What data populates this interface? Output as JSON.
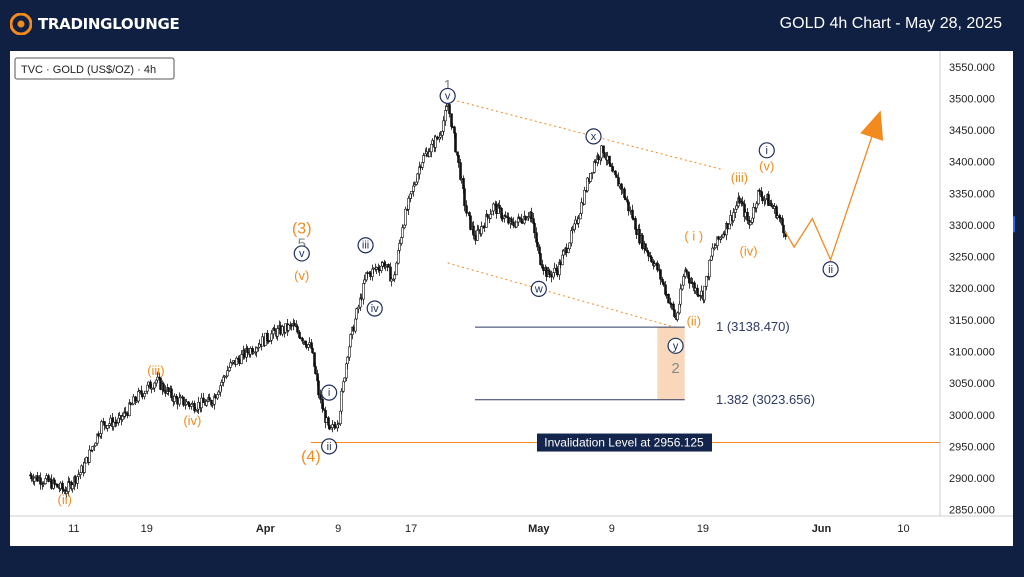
{
  "header": {
    "brand": "TRADINGLOUNGE",
    "title": "GOLD 4h Chart - May 28, 2025"
  },
  "colors": {
    "orange": "#f28a1e",
    "navy": "#1e2e5c",
    "gray": "#888888",
    "zone": "#f6c9a4",
    "background": "#0f2043"
  },
  "chart_data": {
    "type": "candlestick",
    "symbol_label": "TVC · GOLD (US$/OZ) · 4h",
    "ylim": [
      2840,
      3575
    ],
    "y_ticks": [
      "3550.000",
      "3500.000",
      "3450.000",
      "3400.000",
      "3350.000",
      "3300.000",
      "3250.000",
      "3200.000",
      "3150.000",
      "3100.000",
      "3050.000",
      "3000.000",
      "2950.000",
      "2900.000",
      "2850.000"
    ],
    "y_tick_values": [
      3550,
      3500,
      3450,
      3400,
      3350,
      3300,
      3250,
      3200,
      3150,
      3100,
      3050,
      3000,
      2950,
      2900,
      2850
    ],
    "x_ticks": [
      "11",
      "19",
      "Apr",
      "9",
      "17",
      "May",
      "9",
      "19",
      "Jun",
      "10"
    ],
    "x_tick_dates": [
      "2025-03-11",
      "2025-03-19",
      "2025-04-01",
      "2025-04-09",
      "2025-04-17",
      "2025-05-01",
      "2025-05-09",
      "2025-05-19",
      "2025-06-01",
      "2025-06-10"
    ],
    "x_tick_bold": [
      false,
      false,
      true,
      false,
      false,
      true,
      false,
      false,
      true,
      false
    ],
    "price_path": [
      [
        "2025-03-06",
        2905
      ],
      [
        "2025-03-08",
        2895
      ],
      [
        "2025-03-10",
        2880
      ],
      [
        "2025-03-12",
        2915
      ],
      [
        "2025-03-14",
        2985
      ],
      [
        "2025-03-16",
        2990
      ],
      [
        "2025-03-18",
        3030
      ],
      [
        "2025-03-20",
        3055
      ],
      [
        "2025-03-22",
        3025
      ],
      [
        "2025-03-24",
        3015
      ],
      [
        "2025-03-26",
        3020
      ],
      [
        "2025-03-28",
        3075
      ],
      [
        "2025-03-30",
        3100
      ],
      [
        "2025-04-02",
        3130
      ],
      [
        "2025-04-04",
        3140
      ],
      [
        "2025-04-06",
        3105
      ],
      [
        "2025-04-07",
        3020
      ],
      [
        "2025-04-08",
        2970
      ],
      [
        "2025-04-09",
        2995
      ],
      [
        "2025-04-10",
        3100
      ],
      [
        "2025-04-12",
        3220
      ],
      [
        "2025-04-14",
        3240
      ],
      [
        "2025-04-15",
        3210
      ],
      [
        "2025-04-16",
        3300
      ],
      [
        "2025-04-18",
        3400
      ],
      [
        "2025-04-20",
        3440
      ],
      [
        "2025-04-21",
        3490
      ],
      [
        "2025-04-22",
        3410
      ],
      [
        "2025-04-23",
        3320
      ],
      [
        "2025-04-24",
        3280
      ],
      [
        "2025-04-26",
        3330
      ],
      [
        "2025-04-28",
        3300
      ],
      [
        "2025-04-30",
        3320
      ],
      [
        "2025-05-01",
        3250
      ],
      [
        "2025-05-02",
        3220
      ],
      [
        "2025-05-03",
        3230
      ],
      [
        "2025-05-05",
        3300
      ],
      [
        "2025-05-07",
        3400
      ],
      [
        "2025-05-08",
        3420
      ],
      [
        "2025-05-09",
        3380
      ],
      [
        "2025-05-10",
        3360
      ],
      [
        "2025-05-12",
        3280
      ],
      [
        "2025-05-14",
        3230
      ],
      [
        "2025-05-15",
        3190
      ],
      [
        "2025-05-16",
        3150
      ],
      [
        "2025-05-17",
        3230
      ],
      [
        "2025-05-18",
        3200
      ],
      [
        "2025-05-19",
        3190
      ],
      [
        "2025-05-20",
        3260
      ],
      [
        "2025-05-22",
        3310
      ],
      [
        "2025-05-23",
        3340
      ],
      [
        "2025-05-24",
        3300
      ],
      [
        "2025-05-25",
        3350
      ],
      [
        "2025-05-26",
        3340
      ],
      [
        "2025-05-27",
        3320
      ],
      [
        "2025-05-28",
        3290
      ]
    ],
    "channel_lines": [
      {
        "from": [
          "2025-04-21",
          3500
        ],
        "to": [
          "2025-05-21",
          3388
        ]
      },
      {
        "from": [
          "2025-04-21",
          3240
        ],
        "to": [
          "2025-05-16",
          3138
        ]
      }
    ],
    "projection": [
      [
        "2025-05-28",
        3290
      ],
      [
        "2025-05-29",
        3265
      ],
      [
        "2025-05-31",
        3310
      ],
      [
        "2025-06-02",
        3245
      ],
      [
        "2025-06-07",
        3460
      ]
    ],
    "fib_levels": [
      {
        "label": "1 (3138.470)",
        "value": 3138.47
      },
      {
        "label": "1.382 (3023.656)",
        "value": 3023.656
      }
    ],
    "target_zone": {
      "from_date": "2025-05-14",
      "to_date": "2025-05-17",
      "high": 3138.47,
      "low": 3023.656
    },
    "invalidation": {
      "label": "Invalidation Level at 2956.125",
      "value": 2956.125
    },
    "wave_labels": [
      {
        "text": "1",
        "style": "gray",
        "date": "2025-04-21",
        "price": 3522
      },
      {
        "text": "v",
        "style": "navy-circle",
        "date": "2025-04-21",
        "price": 3504
      },
      {
        "text": "x",
        "style": "navy-circle",
        "date": "2025-05-07",
        "price": 3440
      },
      {
        "text": "w",
        "style": "navy-circle",
        "date": "2025-05-01",
        "price": 3199
      },
      {
        "text": "y",
        "style": "navy-circle",
        "date": "2025-05-16",
        "price": 3109
      },
      {
        "text": "2",
        "style": "gray",
        "date": "2025-05-16",
        "price": 3074
      },
      {
        "text": "i",
        "style": "navy-circle",
        "date": "2025-05-26",
        "price": 3418
      },
      {
        "text": "ii",
        "style": "navy-circle",
        "date": "2025-06-02",
        "price": 3230
      },
      {
        "text": "(v)",
        "style": "orange",
        "date": "2025-05-26",
        "price": 3393
      },
      {
        "text": "(iii)",
        "style": "orange",
        "date": "2025-05-23",
        "price": 3375
      },
      {
        "text": "(iv)",
        "style": "orange",
        "date": "2025-05-24",
        "price": 3259
      },
      {
        "text": "( i )",
        "style": "orange",
        "date": "2025-05-18",
        "price": 3283
      },
      {
        "text": "(ii)",
        "style": "orange",
        "date": "2025-05-18",
        "price": 3148
      },
      {
        "text": "(3)",
        "style": "orange-large",
        "date": "2025-04-05",
        "price": 3295
      },
      {
        "text": "5",
        "style": "gray",
        "date": "2025-04-05",
        "price": 3271
      },
      {
        "text": "v",
        "style": "navy-circle",
        "date": "2025-04-05",
        "price": 3255
      },
      {
        "text": "(v)",
        "style": "orange",
        "date": "2025-04-05",
        "price": 3220
      },
      {
        "text": "iii",
        "style": "navy-circle",
        "date": "2025-04-12",
        "price": 3268
      },
      {
        "text": "iv",
        "style": "navy-circle",
        "date": "2025-04-13",
        "price": 3168
      },
      {
        "text": "i",
        "style": "navy-circle",
        "date": "2025-04-08",
        "price": 3035
      },
      {
        "text": "ii",
        "style": "navy-circle",
        "date": "2025-04-08",
        "price": 2950
      },
      {
        "text": "(4)",
        "style": "orange-large",
        "date": "2025-04-06",
        "price": 2935
      },
      {
        "text": "(iii)",
        "style": "orange",
        "date": "2025-03-20",
        "price": 3070
      },
      {
        "text": "(iv)",
        "style": "orange",
        "date": "2025-03-24",
        "price": 2991
      },
      {
        "text": "(ii)",
        "style": "orange",
        "date": "2025-03-10",
        "price": 2866
      }
    ]
  }
}
